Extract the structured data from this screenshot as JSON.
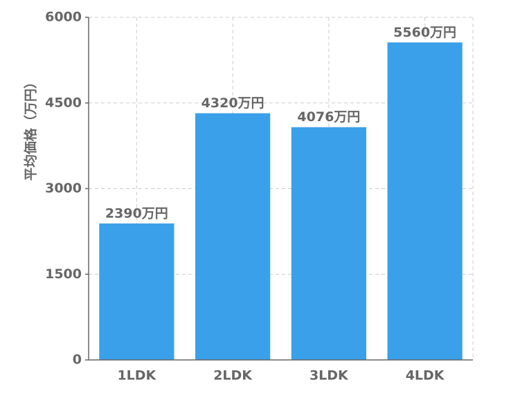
{
  "chart_data": {
    "type": "bar",
    "y_label": "平均価格（万円）",
    "categories": [
      "1LDK",
      "2LDK",
      "3LDK",
      "4LDK"
    ],
    "values": [
      2390,
      4320,
      4076,
      5560
    ],
    "value_labels": [
      "2390万円",
      "4320万円",
      "4076万円",
      "5560万円"
    ],
    "color": "#3aa0e9",
    "ylim": [
      0,
      6000
    ],
    "yticks": [
      0,
      1500,
      3000,
      4500,
      6000
    ],
    "grid": true
  }
}
